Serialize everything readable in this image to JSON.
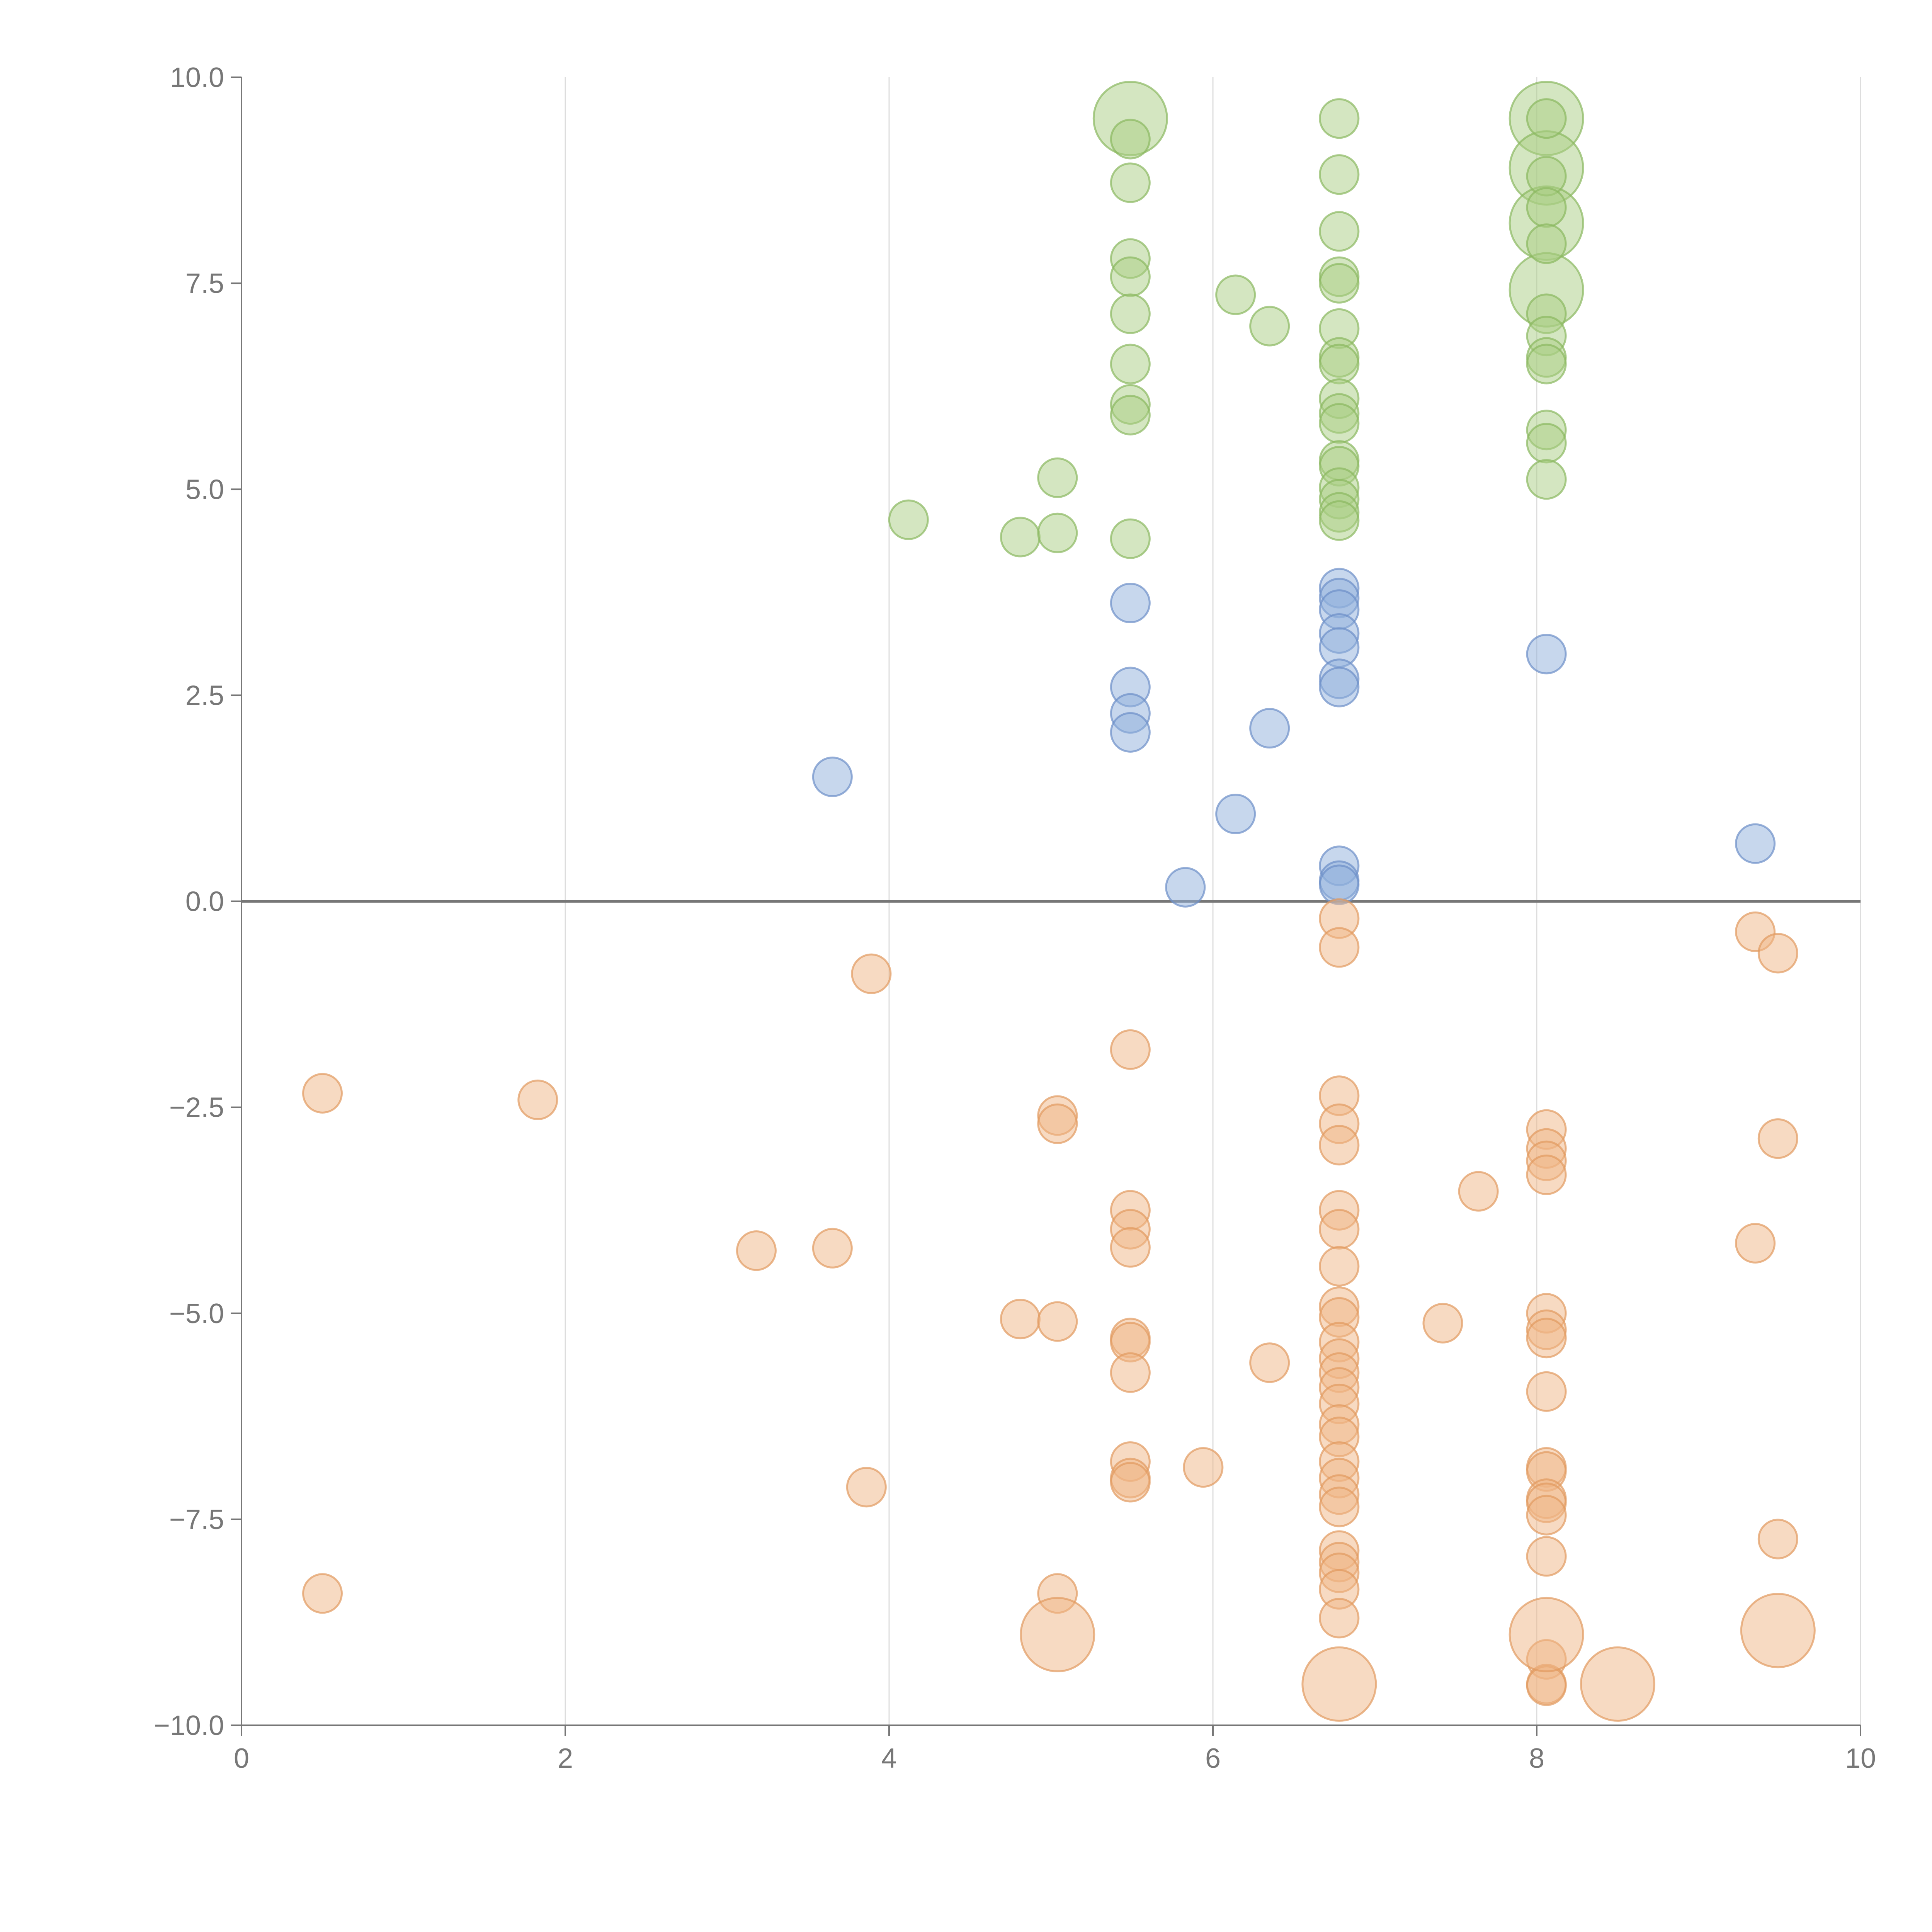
{
  "chart_data": {
    "type": "scatter",
    "title": "",
    "xlabel": "",
    "ylabel": "",
    "xlim": [
      0,
      10
    ],
    "ylim": [
      -10,
      10
    ],
    "grid": "vertical",
    "legend": "none",
    "x_ticks": [
      0,
      2,
      4,
      6,
      8,
      10
    ],
    "y_ticks": [
      -10,
      -7.5,
      -5,
      -2.5,
      0,
      2.5,
      5,
      7.5,
      10
    ],
    "x_tick_labels": [
      "0",
      "2",
      "4",
      "6",
      "8",
      "10"
    ],
    "y_tick_labels": [
      "−10.0",
      "−7.5",
      "−5.0",
      "−2.5",
      "0.0",
      "2.5",
      "5.0",
      "7.5",
      "10.0"
    ],
    "series": [
      {
        "name": "green",
        "fill": "#a9cd84",
        "stroke": "#8ab860",
        "points": [
          [
            5.49,
            9.5,
            3
          ],
          [
            5.49,
            9.25,
            1
          ],
          [
            5.49,
            8.72,
            1
          ],
          [
            5.49,
            7.8,
            1
          ],
          [
            5.49,
            7.58,
            1
          ],
          [
            5.49,
            7.13,
            1
          ],
          [
            5.49,
            6.52,
            1
          ],
          [
            5.49,
            6.03,
            1
          ],
          [
            5.49,
            5.9,
            1
          ],
          [
            5.49,
            4.4,
            1
          ],
          [
            4.12,
            4.63,
            1
          ],
          [
            4.81,
            4.42,
            1
          ],
          [
            5.04,
            4.47,
            1
          ],
          [
            5.04,
            5.14,
            1
          ],
          [
            6.14,
            7.36,
            1
          ],
          [
            6.35,
            6.98,
            1
          ],
          [
            6.78,
            9.5,
            1
          ],
          [
            6.78,
            8.82,
            1
          ],
          [
            6.78,
            8.13,
            1
          ],
          [
            6.78,
            7.58,
            1
          ],
          [
            6.78,
            7.5,
            1
          ],
          [
            6.78,
            6.95,
            1
          ],
          [
            6.78,
            6.6,
            1
          ],
          [
            6.78,
            6.52,
            1
          ],
          [
            6.78,
            6.1,
            1
          ],
          [
            6.78,
            5.92,
            1
          ],
          [
            6.78,
            5.8,
            1
          ],
          [
            6.78,
            5.35,
            1
          ],
          [
            6.78,
            5.28,
            1
          ],
          [
            6.78,
            5.02,
            1
          ],
          [
            6.78,
            4.88,
            1
          ],
          [
            6.78,
            4.72,
            1
          ],
          [
            6.78,
            4.62,
            1
          ],
          [
            8.06,
            9.5,
            2
          ],
          [
            8.06,
            8.9,
            2
          ],
          [
            8.06,
            8.23,
            2
          ],
          [
            8.06,
            7.42,
            2
          ],
          [
            8.06,
            9.5,
            1
          ],
          [
            8.06,
            8.8,
            1
          ],
          [
            8.06,
            8.42,
            1
          ],
          [
            8.06,
            7.98,
            1
          ],
          [
            8.06,
            7.13,
            1
          ],
          [
            8.06,
            6.86,
            1
          ],
          [
            8.06,
            6.6,
            1
          ],
          [
            8.06,
            6.52,
            1
          ],
          [
            8.06,
            5.72,
            1
          ],
          [
            8.06,
            5.56,
            1
          ],
          [
            8.06,
            5.12,
            1
          ]
        ]
      },
      {
        "name": "blue",
        "fill": "#8fafdc",
        "stroke": "#6c8fc8",
        "points": [
          [
            3.65,
            1.51,
            1
          ],
          [
            5.49,
            3.62,
            1
          ],
          [
            5.49,
            2.6,
            1
          ],
          [
            5.49,
            2.28,
            1
          ],
          [
            5.49,
            2.05,
            1
          ],
          [
            5.83,
            0.17,
            1
          ],
          [
            6.14,
            1.06,
            1
          ],
          [
            6.35,
            2.1,
            1
          ],
          [
            6.78,
            3.8,
            1
          ],
          [
            6.78,
            3.68,
            1
          ],
          [
            6.78,
            3.54,
            1
          ],
          [
            6.78,
            3.25,
            1
          ],
          [
            6.78,
            3.08,
            1
          ],
          [
            6.78,
            2.7,
            1
          ],
          [
            6.78,
            2.6,
            1
          ],
          [
            6.78,
            0.43,
            1
          ],
          [
            6.78,
            0.25,
            1
          ],
          [
            6.78,
            0.2,
            1
          ],
          [
            8.06,
            3.0,
            1
          ],
          [
            9.35,
            0.7,
            1
          ]
        ]
      },
      {
        "name": "orange",
        "fill": "#f0b586",
        "stroke": "#e19a5f",
        "points": [
          [
            0.5,
            -2.33,
            1
          ],
          [
            1.83,
            -2.41,
            1
          ],
          [
            0.5,
            -8.4,
            1
          ],
          [
            3.18,
            -4.24,
            1
          ],
          [
            3.65,
            -4.21,
            1
          ],
          [
            3.89,
            -0.88,
            1
          ],
          [
            3.86,
            -7.11,
            1
          ],
          [
            4.81,
            -5.07,
            1
          ],
          [
            5.04,
            -5.1,
            1
          ],
          [
            5.04,
            -2.6,
            1
          ],
          [
            5.04,
            -2.7,
            1
          ],
          [
            5.04,
            -8.4,
            1
          ],
          [
            5.04,
            -8.9,
            3
          ],
          [
            5.49,
            -1.8,
            1
          ],
          [
            5.49,
            -3.75,
            1
          ],
          [
            5.49,
            -3.98,
            1
          ],
          [
            5.49,
            -4.2,
            1
          ],
          [
            5.49,
            -5.3,
            1
          ],
          [
            5.49,
            -5.35,
            1
          ],
          [
            5.49,
            -5.72,
            1
          ],
          [
            5.49,
            -6.8,
            1
          ],
          [
            5.49,
            -7.0,
            1
          ],
          [
            5.49,
            -7.05,
            1
          ],
          [
            5.94,
            -6.87,
            1
          ],
          [
            6.35,
            -5.6,
            1
          ],
          [
            6.78,
            -0.21,
            1
          ],
          [
            6.78,
            -0.56,
            1
          ],
          [
            6.78,
            -2.36,
            1
          ],
          [
            6.78,
            -2.7,
            1
          ],
          [
            6.78,
            -2.96,
            1
          ],
          [
            6.78,
            -3.75,
            1
          ],
          [
            6.78,
            -3.98,
            1
          ],
          [
            6.78,
            -4.43,
            1
          ],
          [
            6.78,
            -4.92,
            1
          ],
          [
            6.78,
            -5.05,
            1
          ],
          [
            6.78,
            -5.35,
            1
          ],
          [
            6.78,
            -5.55,
            1
          ],
          [
            6.78,
            -5.72,
            1
          ],
          [
            6.78,
            -5.9,
            1
          ],
          [
            6.78,
            -6.1,
            1
          ],
          [
            6.78,
            -6.35,
            1
          ],
          [
            6.78,
            -6.5,
            1
          ],
          [
            6.78,
            -6.8,
            1
          ],
          [
            6.78,
            -7.0,
            1
          ],
          [
            6.78,
            -7.2,
            1
          ],
          [
            6.78,
            -7.35,
            1
          ],
          [
            6.78,
            -7.88,
            1
          ],
          [
            6.78,
            -8.02,
            1
          ],
          [
            6.78,
            -8.15,
            1
          ],
          [
            6.78,
            -8.35,
            1
          ],
          [
            6.78,
            -8.7,
            1
          ],
          [
            6.78,
            -9.5,
            3
          ],
          [
            7.42,
            -5.12,
            1
          ],
          [
            7.64,
            -3.52,
            1
          ],
          [
            8.06,
            -2.77,
            1
          ],
          [
            8.06,
            -3.0,
            1
          ],
          [
            8.06,
            -3.15,
            1
          ],
          [
            8.06,
            -3.32,
            1
          ],
          [
            8.06,
            -5.0,
            1
          ],
          [
            8.06,
            -5.2,
            1
          ],
          [
            8.06,
            -5.3,
            1
          ],
          [
            8.06,
            -5.95,
            1
          ],
          [
            8.06,
            -6.87,
            1
          ],
          [
            8.06,
            -6.92,
            1
          ],
          [
            8.06,
            -7.25,
            1
          ],
          [
            8.06,
            -7.3,
            1
          ],
          [
            8.06,
            -7.45,
            1
          ],
          [
            8.06,
            -7.95,
            1
          ],
          [
            8.06,
            -9.2,
            1
          ],
          [
            8.06,
            -9.5,
            1
          ],
          [
            8.06,
            -9.52,
            1
          ],
          [
            8.06,
            -8.9,
            3
          ],
          [
            8.5,
            -9.5,
            3
          ],
          [
            9.35,
            -0.37,
            1
          ],
          [
            9.49,
            -0.63,
            1
          ],
          [
            9.49,
            -2.88,
            1
          ],
          [
            9.35,
            -4.15,
            1
          ],
          [
            9.49,
            -7.74,
            1
          ],
          [
            9.49,
            -8.85,
            3
          ]
        ]
      }
    ]
  }
}
